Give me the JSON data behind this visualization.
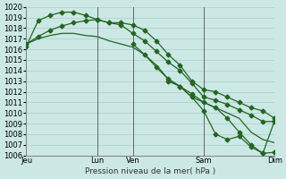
{
  "title": "Pression niveau de la mer( hPa )",
  "bg_color": "#cce8e4",
  "grid_color": "#aacccc",
  "line_color": "#226622",
  "ylim": [
    1006,
    1020
  ],
  "day_labels": [
    "Jeu",
    "",
    "Lun",
    "Ven",
    "",
    "Sam",
    "",
    "Dim"
  ],
  "day_positions": [
    0,
    3,
    6,
    9,
    12,
    15,
    18,
    21
  ],
  "vline_positions": [
    0,
    6,
    9,
    15,
    21
  ],
  "vline_labels": [
    "Jeu",
    "Lun",
    "Ven",
    "Sam",
    "Dim"
  ],
  "series": [
    {
      "x": [
        0,
        1,
        2,
        3,
        4,
        5,
        6,
        7,
        8,
        9,
        10,
        11,
        12,
        13,
        14,
        15,
        16,
        17,
        18,
        19,
        20,
        21
      ],
      "y": [
        1016.3,
        1018.7,
        1019.2,
        1019.5,
        1019.5,
        1019.2,
        1018.8,
        1018.5,
        1018.5,
        1018.3,
        1017.8,
        1016.8,
        1015.5,
        1014.5,
        1013.0,
        1012.2,
        1012.0,
        1011.5,
        1011.0,
        1010.5,
        1010.2,
        1009.5
      ],
      "markers": true
    },
    {
      "x": [
        0,
        1,
        2,
        3,
        4,
        5,
        6,
        7,
        8,
        9,
        10,
        11,
        12,
        13,
        14,
        15,
        16,
        17,
        18,
        19,
        20,
        21
      ],
      "y": [
        1016.5,
        1017.2,
        1017.8,
        1018.2,
        1018.5,
        1018.7,
        1018.8,
        1018.5,
        1018.3,
        1017.5,
        1016.8,
        1015.8,
        1014.8,
        1014.0,
        1012.8,
        1011.5,
        1011.2,
        1010.8,
        1010.3,
        1009.8,
        1009.2,
        1009.2
      ],
      "markers": true
    },
    {
      "x": [
        0,
        1,
        2,
        3,
        4,
        5,
        6,
        7,
        8,
        9,
        10,
        11,
        12,
        13,
        14,
        15,
        16,
        17,
        18,
        19,
        20,
        21
      ],
      "y": [
        1016.5,
        1017.0,
        1017.3,
        1017.5,
        1017.5,
        1017.3,
        1017.2,
        1016.8,
        1016.5,
        1016.2,
        1015.5,
        1014.5,
        1013.2,
        1012.5,
        1011.5,
        1011.0,
        1010.5,
        1010.0,
        1009.5,
        1008.2,
        1007.5,
        1007.2
      ],
      "markers": false
    },
    {
      "x": [
        9,
        10,
        11,
        12,
        13,
        14,
        15,
        16,
        17,
        18,
        19,
        20,
        21
      ],
      "y": [
        1016.5,
        1015.5,
        1014.3,
        1013.2,
        1012.5,
        1011.8,
        1011.0,
        1010.5,
        1009.5,
        1008.2,
        1007.0,
        1006.2,
        1006.3
      ],
      "markers": true
    },
    {
      "x": [
        12,
        13,
        14,
        15,
        16,
        17,
        18,
        19,
        20,
        21
      ],
      "y": [
        1013.0,
        1012.5,
        1011.5,
        1010.2,
        1008.0,
        1007.5,
        1007.8,
        1006.8,
        1006.2,
        1009.3
      ],
      "markers": true
    }
  ]
}
